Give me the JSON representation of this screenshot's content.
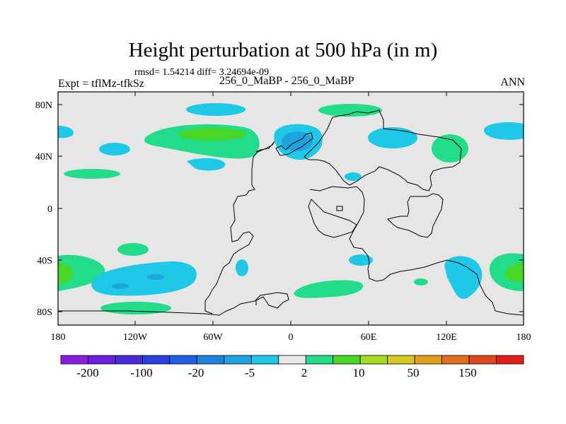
{
  "title": "Height perturbation at 500 hPa (in m)",
  "stats_line": "rmsd= 1.54214 diff= 3.24694e-09",
  "experiment_label": "Expt = tflMz-tfkSz",
  "case_label": "256_0_MaBP - 256_0_MaBP",
  "season_label": "ANN",
  "axes": {
    "x_ticks": [
      "180",
      "120W",
      "60W",
      "0",
      "60E",
      "120E",
      "180"
    ],
    "y_ticks": [
      "80N",
      "40N",
      "0",
      "40S",
      "80S"
    ]
  },
  "colorbar": {
    "labels": [
      "-200",
      "-100",
      "-20",
      "-5",
      "2",
      "10",
      "50",
      "150"
    ],
    "colors": [
      "#8a1ee0",
      "#6a1fe0",
      "#4a2ad6",
      "#2a3fdc",
      "#1e5fe6",
      "#1e82e0",
      "#1ea4e0",
      "#1ec8e6",
      "#e8e8e8",
      "#22dc8a",
      "#48d628",
      "#a6dc1e",
      "#d6c81e",
      "#e0a01e",
      "#e06e1e",
      "#e0461e",
      "#e01e1e"
    ]
  },
  "colors": {
    "background": "#e6e6e6",
    "land_outline": "#000000",
    "cyan_anomaly": "#1ec8e6",
    "blue_anomaly": "#1ea4e0",
    "green_anomaly": "#22dc8a",
    "lime_anomaly": "#48d628"
  }
}
